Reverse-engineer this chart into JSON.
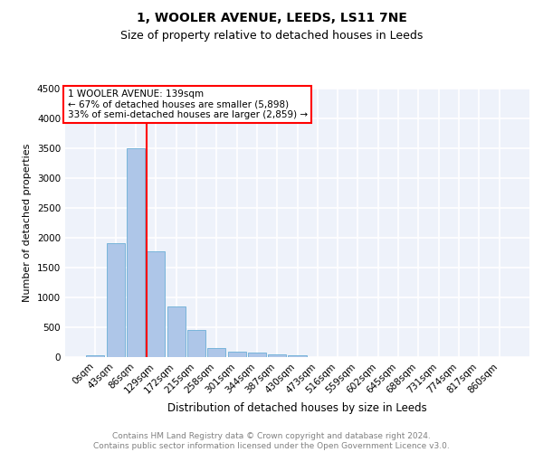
{
  "title_line1": "1, WOOLER AVENUE, LEEDS, LS11 7NE",
  "title_line2": "Size of property relative to detached houses in Leeds",
  "xlabel": "Distribution of detached houses by size in Leeds",
  "ylabel": "Number of detached properties",
  "bar_labels": [
    "0sqm",
    "43sqm",
    "86sqm",
    "129sqm",
    "172sqm",
    "215sqm",
    "258sqm",
    "301sqm",
    "344sqm",
    "387sqm",
    "430sqm",
    "473sqm",
    "516sqm",
    "559sqm",
    "602sqm",
    "645sqm",
    "688sqm",
    "731sqm",
    "774sqm",
    "817sqm",
    "860sqm"
  ],
  "bar_values": [
    30,
    1900,
    3500,
    1770,
    850,
    450,
    155,
    95,
    75,
    50,
    30,
    0,
    0,
    0,
    0,
    0,
    0,
    0,
    0,
    0,
    0
  ],
  "bar_color": "#aec6e8",
  "bar_edge_color": "#6aaed6",
  "vline_color": "red",
  "vline_x_index": 3,
  "ylim": [
    0,
    4500
  ],
  "annotation_text": "1 WOOLER AVENUE: 139sqm\n← 67% of detached houses are smaller (5,898)\n33% of semi-detached houses are larger (2,859) →",
  "annotation_box_color": "white",
  "annotation_box_edge_color": "red",
  "footnote": "Contains HM Land Registry data © Crown copyright and database right 2024.\nContains public sector information licensed under the Open Government Licence v3.0.",
  "bg_color": "#eef2fa",
  "grid_color": "white",
  "title1_fontsize": 10,
  "title2_fontsize": 9,
  "ylabel_fontsize": 8,
  "xlabel_fontsize": 8.5,
  "tick_fontsize": 7.5,
  "annot_fontsize": 7.5,
  "footnote_fontsize": 6.5
}
